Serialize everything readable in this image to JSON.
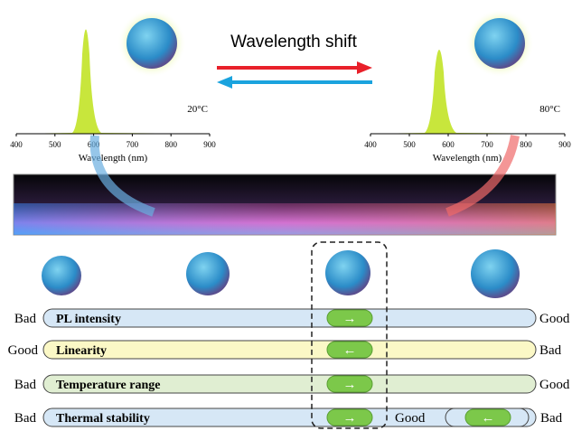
{
  "spectra": [
    {
      "ticks": [
        400,
        500,
        600,
        700,
        800,
        900
      ],
      "xlabel": "Wavelength (nm)",
      "temperature": "20°C"
    },
    {
      "ticks": [
        400,
        500,
        600,
        700,
        800,
        900
      ],
      "xlabel": "Wavelength (nm)",
      "temperature": "80°C"
    }
  ],
  "shift_label": "Wavelength shift",
  "rows": [
    {
      "left": "Bad",
      "label": "PL intensity",
      "arrow": "→",
      "right": "Good"
    },
    {
      "left": "Good",
      "label": "Linearity",
      "arrow": "←",
      "right": "Bad"
    },
    {
      "left": "Bad",
      "label": "Temperature range",
      "arrow": "→",
      "right": "Good"
    },
    {
      "left": "Bad",
      "label": "Thermal stability",
      "arrow": "→",
      "right": "Good"
    }
  ],
  "extra": {
    "left": "Good",
    "arrow": "←",
    "right": "Bad"
  }
}
